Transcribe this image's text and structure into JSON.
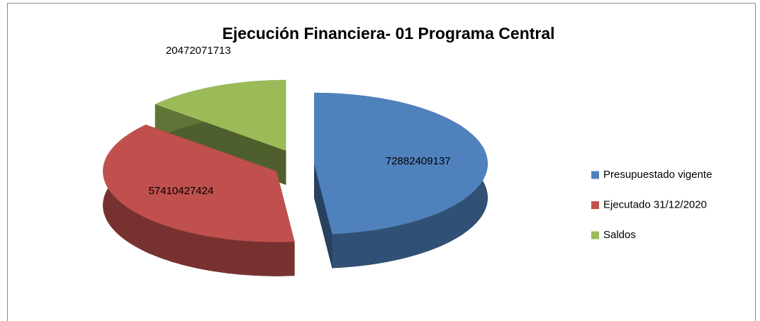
{
  "chart_data": {
    "type": "pie",
    "title": "Ejecución Financiera- 01 Programa Central",
    "categories": [
      "Presupuestado vigente",
      "Ejecutado 31/12/2020",
      "Saldos"
    ],
    "values": [
      72882409137,
      57410427424,
      20472071713
    ],
    "colors": [
      "#4f81bd",
      "#c0504d",
      "#9bbb59"
    ],
    "legend": "right"
  }
}
